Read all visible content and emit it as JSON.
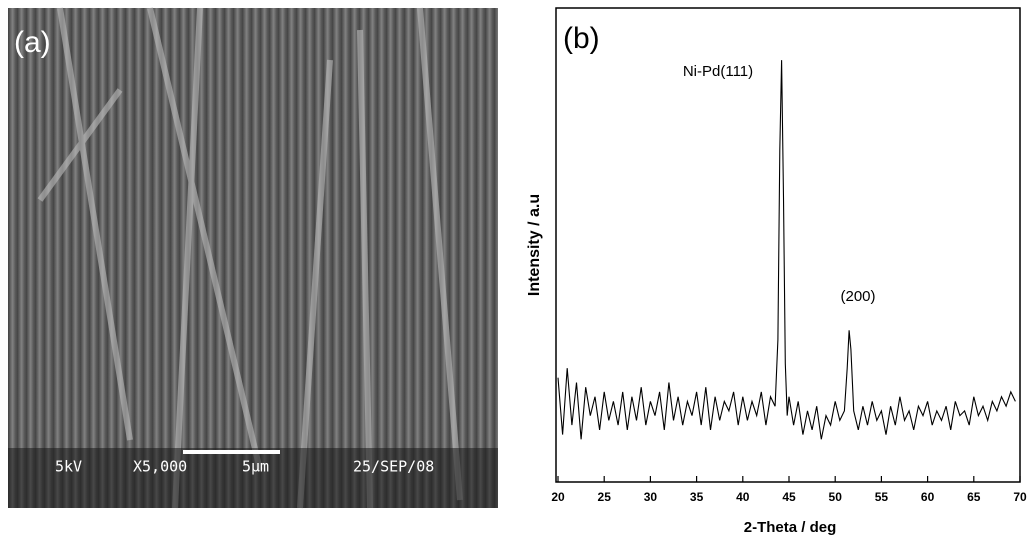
{
  "image_panel": {
    "label": "(a)",
    "voltage": "5kV",
    "magnification": "X5,000",
    "scale_bar": "5μm",
    "date": "25/SEP/08"
  },
  "chart_data": {
    "type": "line",
    "label": "(b)",
    "x_label": "2-Theta / deg",
    "y_label": "Intensity / a.u",
    "color": "#000000",
    "annotations": [
      "Ni-Pd(111)",
      "(200)"
    ],
    "xlim": [
      20,
      70
    ],
    "xticks": [
      20,
      25,
      30,
      35,
      40,
      45,
      50,
      55,
      60,
      65,
      70
    ],
    "ylim": [
      0,
      100
    ],
    "x": [
      20,
      20.5,
      21,
      21.5,
      22,
      22.5,
      23,
      23.5,
      24,
      24.5,
      25,
      25.5,
      26,
      26.5,
      27,
      27.5,
      28,
      28.5,
      29,
      29.5,
      30,
      30.5,
      31,
      31.5,
      32,
      32.5,
      33,
      33.5,
      34,
      34.5,
      35,
      35.5,
      36,
      36.5,
      37,
      37.5,
      38,
      38.5,
      39,
      39.5,
      40,
      40.5,
      41,
      41.5,
      42,
      42.5,
      43,
      43.5,
      43.8,
      44,
      44.2,
      44.4,
      44.6,
      44.8,
      45,
      45.5,
      46,
      46.5,
      47,
      47.5,
      48,
      48.5,
      49,
      49.5,
      50,
      50.5,
      51,
      51.3,
      51.5,
      51.7,
      52,
      52.5,
      53,
      53.5,
      54,
      54.5,
      55,
      55.5,
      56,
      56.5,
      57,
      57.5,
      58,
      58.5,
      59,
      59.5,
      60,
      60.5,
      61,
      61.5,
      62,
      62.5,
      63,
      63.5,
      64,
      64.5,
      65,
      65.5,
      66,
      66.5,
      67,
      67.5,
      68,
      68.5,
      69,
      69.5
    ],
    "values": [
      22,
      10,
      24,
      12,
      21,
      9,
      20,
      14,
      18,
      11,
      19,
      13,
      17,
      12,
      19,
      11,
      18,
      13,
      20,
      12,
      17,
      14,
      19,
      11,
      21,
      13,
      18,
      12,
      17,
      14,
      19,
      12,
      20,
      11,
      18,
      13,
      17,
      15,
      19,
      12,
      18,
      13,
      17,
      14,
      19,
      12,
      18,
      16,
      30,
      70,
      89,
      60,
      25,
      14,
      18,
      12,
      17,
      10,
      15,
      11,
      16,
      9,
      14,
      12,
      17,
      13,
      15,
      24,
      32,
      28,
      15,
      11,
      16,
      12,
      17,
      13,
      15,
      10,
      16,
      12,
      18,
      13,
      15,
      11,
      16,
      14,
      17,
      12,
      15,
      13,
      16,
      11,
      17,
      14,
      15,
      12,
      18,
      14,
      16,
      13,
      17,
      15,
      18,
      16,
      19,
      17
    ]
  }
}
